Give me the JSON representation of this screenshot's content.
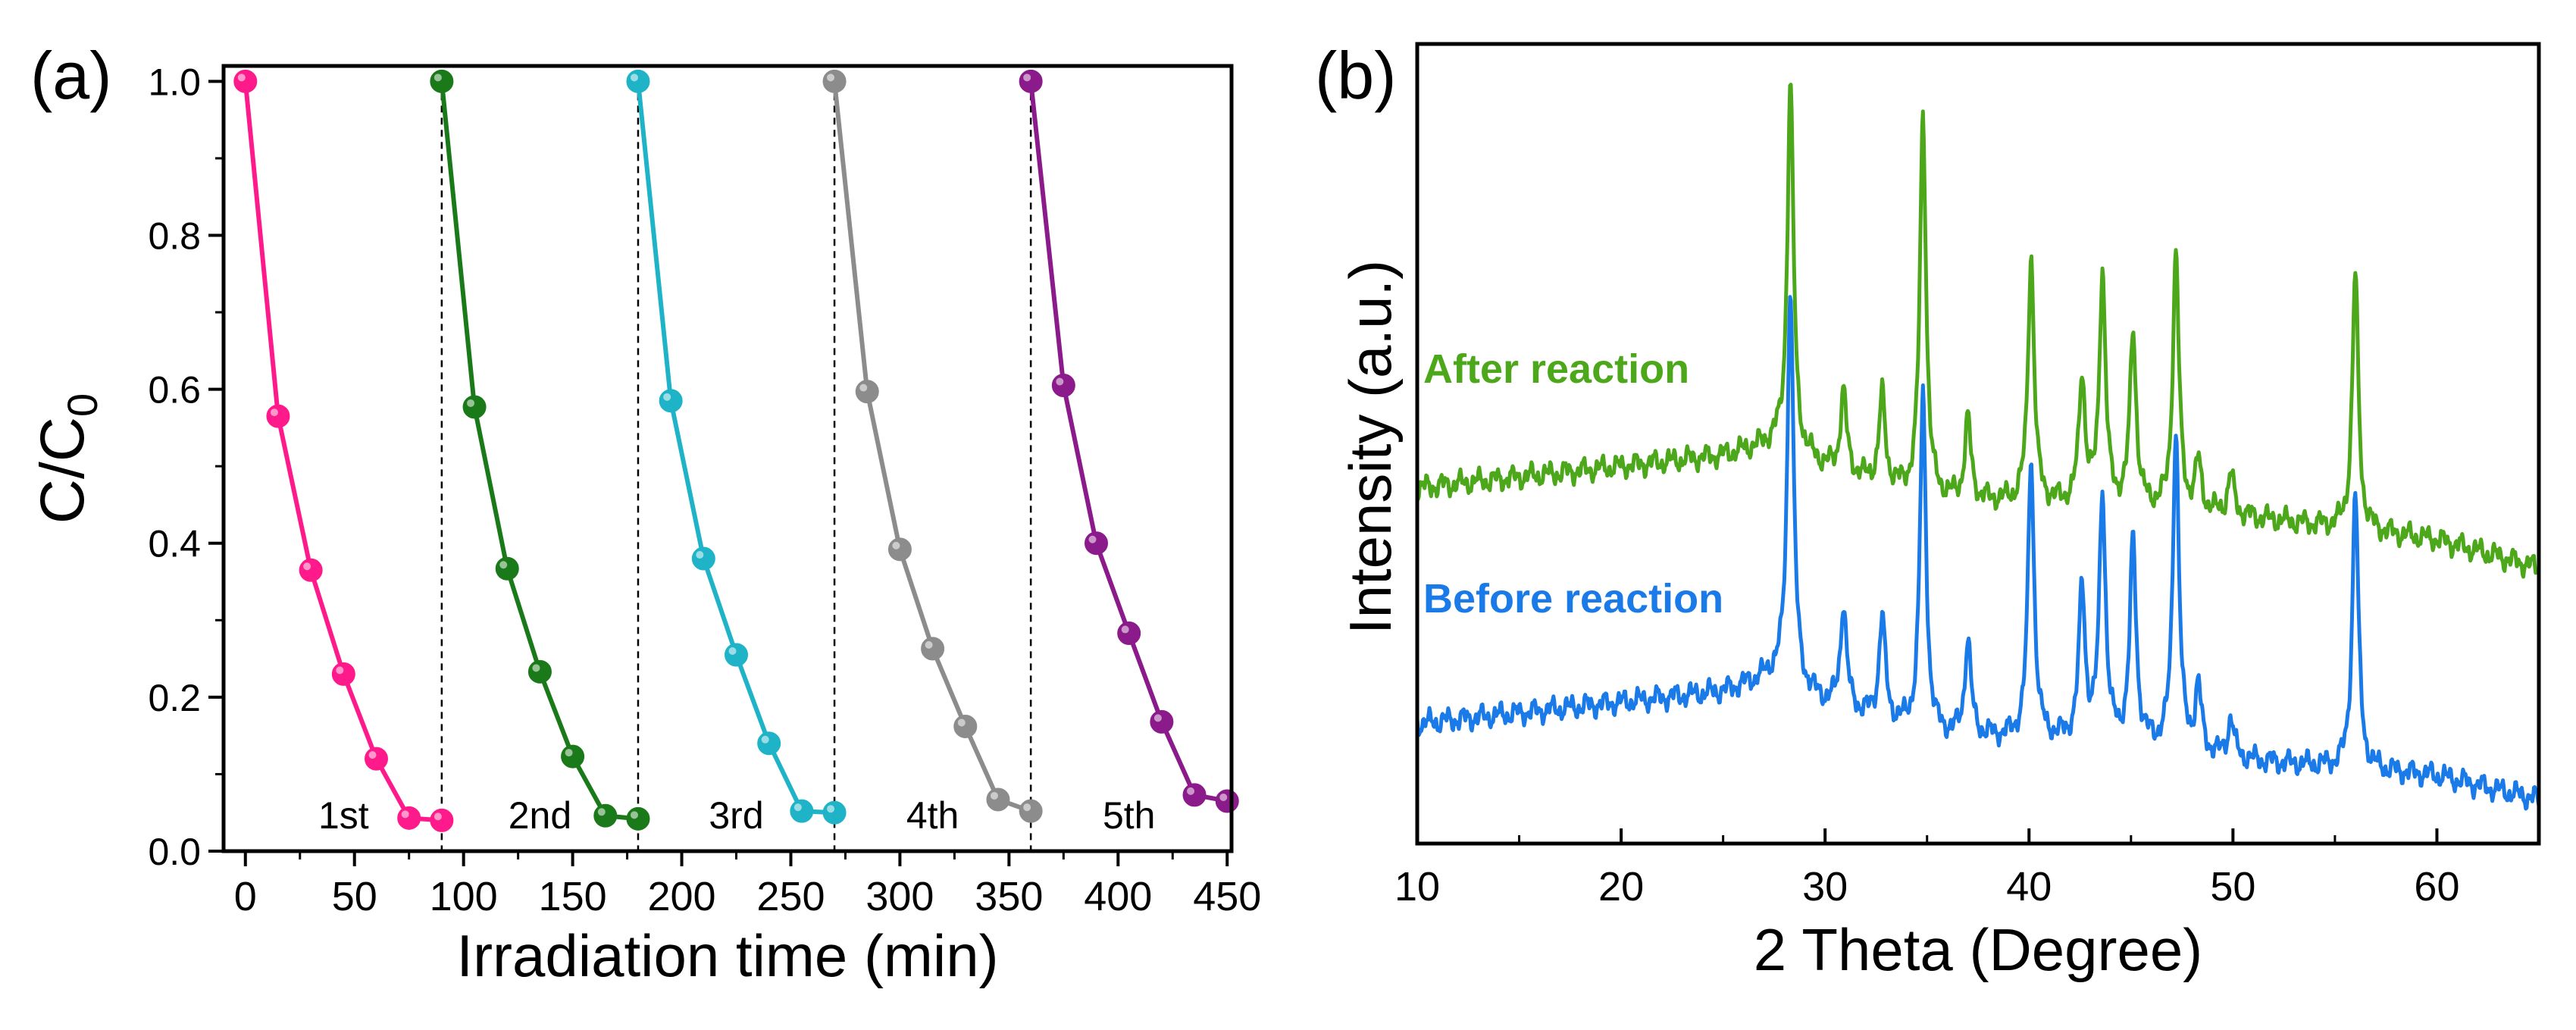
{
  "chart_data": [
    {
      "panel": "(a)",
      "type": "line",
      "xlabel": "Irradiation time (min)",
      "ylabel_main": "C/C",
      "ylabel_sub": "0",
      "xlim": [
        -10,
        452
      ],
      "ylim": [
        0.0,
        1.02
      ],
      "x_ticks": [
        0,
        50,
        100,
        150,
        200,
        250,
        300,
        350,
        400,
        450
      ],
      "y_ticks": [
        "0.0",
        "0.2",
        "0.4",
        "0.6",
        "0.8",
        "1.0"
      ],
      "dividers": [
        90,
        180,
        270,
        360
      ],
      "series": [
        {
          "name": "1st",
          "color": "#ff1a8c",
          "x": [
            0,
            15,
            30,
            45,
            60,
            75,
            90
          ],
          "values": [
            1.0,
            0.565,
            0.365,
            0.23,
            0.12,
            0.043,
            0.04
          ]
        },
        {
          "name": "2nd",
          "color": "#1a7a1a",
          "x": [
            90,
            105,
            120,
            135,
            150,
            165,
            180
          ],
          "values": [
            1.0,
            0.577,
            0.367,
            0.233,
            0.123,
            0.046,
            0.042
          ]
        },
        {
          "name": "3rd",
          "color": "#1fb3c8",
          "x": [
            180,
            195,
            210,
            225,
            240,
            255,
            270
          ],
          "values": [
            1.0,
            0.585,
            0.38,
            0.255,
            0.14,
            0.052,
            0.05
          ]
        },
        {
          "name": "4th",
          "color": "#8c8c8c",
          "x": [
            270,
            285,
            300,
            315,
            330,
            345,
            360
          ],
          "values": [
            1.0,
            0.597,
            0.392,
            0.263,
            0.162,
            0.067,
            0.052
          ]
        },
        {
          "name": "5th",
          "color": "#8b1a8b",
          "x": [
            360,
            375,
            390,
            405,
            420,
            435,
            450
          ],
          "values": [
            1.0,
            0.605,
            0.4,
            0.283,
            0.168,
            0.073,
            0.065
          ]
        }
      ],
      "cycle_labels": [
        "1st",
        "2nd",
        "3rd",
        "4th",
        "5th"
      ]
    },
    {
      "panel": "(b)",
      "type": "line",
      "xlabel": "2 Theta (Degree)",
      "ylabel": "Intensity (a.u.)",
      "xlim": [
        10,
        65
      ],
      "ylim": [
        0,
        1
      ],
      "x_ticks": [
        10,
        20,
        30,
        40,
        50,
        60
      ],
      "series": [
        {
          "name": "After reaction",
          "color": "#4ca81a",
          "baseline": [
            [
              10,
              0.445
            ],
            [
              25,
              0.485
            ],
            [
              27.5,
              0.5
            ],
            [
              30,
              0.47
            ],
            [
              35,
              0.43
            ],
            [
              45,
              0.42
            ],
            [
              50,
              0.41
            ],
            [
              60,
              0.38
            ],
            [
              65,
              0.345
            ]
          ],
          "peaks": [
            [
              28.3,
              0.46
            ],
            [
              30.9,
              0.1
            ],
            [
              32.8,
              0.11
            ],
            [
              34.8,
              0.48
            ],
            [
              37.0,
              0.1
            ],
            [
              40.1,
              0.31
            ],
            [
              42.6,
              0.16
            ],
            [
              43.6,
              0.29
            ],
            [
              45.1,
              0.22
            ],
            [
              47.2,
              0.32
            ],
            [
              48.3,
              0.06
            ],
            [
              49.9,
              0.05
            ],
            [
              56.0,
              0.32
            ]
          ]
        },
        {
          "name": "Before reaction",
          "color": "#1a7ae8",
          "baseline": [
            [
              10,
              0.15
            ],
            [
              25,
              0.19
            ],
            [
              27.5,
              0.21
            ],
            [
              30,
              0.175
            ],
            [
              35,
              0.135
            ],
            [
              45,
              0.125
            ],
            [
              50,
              0.105
            ],
            [
              60,
              0.085
            ],
            [
              65,
              0.055
            ]
          ],
          "peaks": [
            [
              28.3,
              0.5
            ],
            [
              30.9,
              0.13
            ],
            [
              32.8,
              0.13
            ],
            [
              34.8,
              0.42
            ],
            [
              37.0,
              0.12
            ],
            [
              40.1,
              0.35
            ],
            [
              42.6,
              0.19
            ],
            [
              43.6,
              0.31
            ],
            [
              45.1,
              0.25
            ],
            [
              47.2,
              0.4
            ],
            [
              48.3,
              0.08
            ],
            [
              49.9,
              0.05
            ],
            [
              56.0,
              0.35
            ]
          ]
        }
      ],
      "legend": [
        "After reaction",
        "Before reaction"
      ]
    }
  ]
}
